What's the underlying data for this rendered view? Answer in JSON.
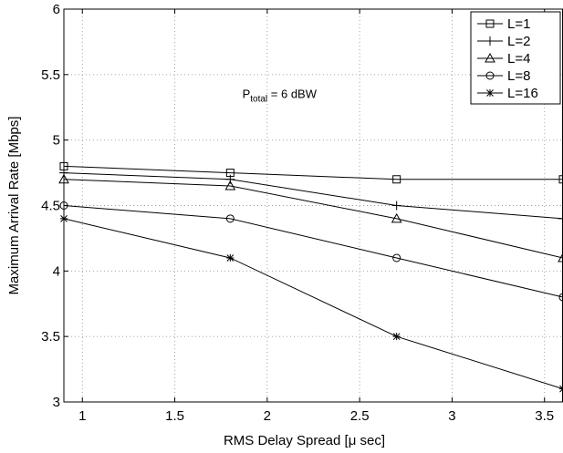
{
  "chart_data": {
    "type": "line",
    "xlabel": "RMS Delay Spread [μ sec]",
    "ylabel": "Maximum Arrival Rate [Mbps]",
    "xlim": [
      0.9,
      3.6
    ],
    "ylim": [
      3,
      6
    ],
    "xticks": [
      1,
      1.5,
      2,
      2.5,
      3,
      3.5
    ],
    "xtick_labels": [
      "1",
      "1.5",
      "2",
      "2.5",
      "3",
      "3.5"
    ],
    "yticks": [
      3,
      3.5,
      4,
      4.5,
      5,
      5.5,
      6
    ],
    "ytick_labels": [
      "3",
      "3.5",
      "4",
      "4.5",
      "5",
      "5.5",
      "6"
    ],
    "grid": true,
    "legend_position": "top-right",
    "annotation": {
      "main": "P",
      "sub": "total",
      "rest": " = 6 dBW",
      "x": 1.9,
      "y": 5.35
    },
    "x": [
      0.9,
      1.8,
      2.7,
      3.6
    ],
    "series": [
      {
        "name": "L=1",
        "marker": "square",
        "values": [
          4.8,
          4.75,
          4.7,
          4.7
        ]
      },
      {
        "name": "L=2",
        "marker": "plus",
        "values": [
          4.75,
          4.7,
          4.5,
          4.4
        ]
      },
      {
        "name": "L=4",
        "marker": "triangle",
        "values": [
          4.7,
          4.65,
          4.4,
          4.1
        ]
      },
      {
        "name": "L=8",
        "marker": "circle",
        "values": [
          4.5,
          4.4,
          4.1,
          3.8
        ]
      },
      {
        "name": "L=16",
        "marker": "star",
        "values": [
          4.4,
          4.1,
          3.5,
          3.1
        ]
      }
    ]
  }
}
